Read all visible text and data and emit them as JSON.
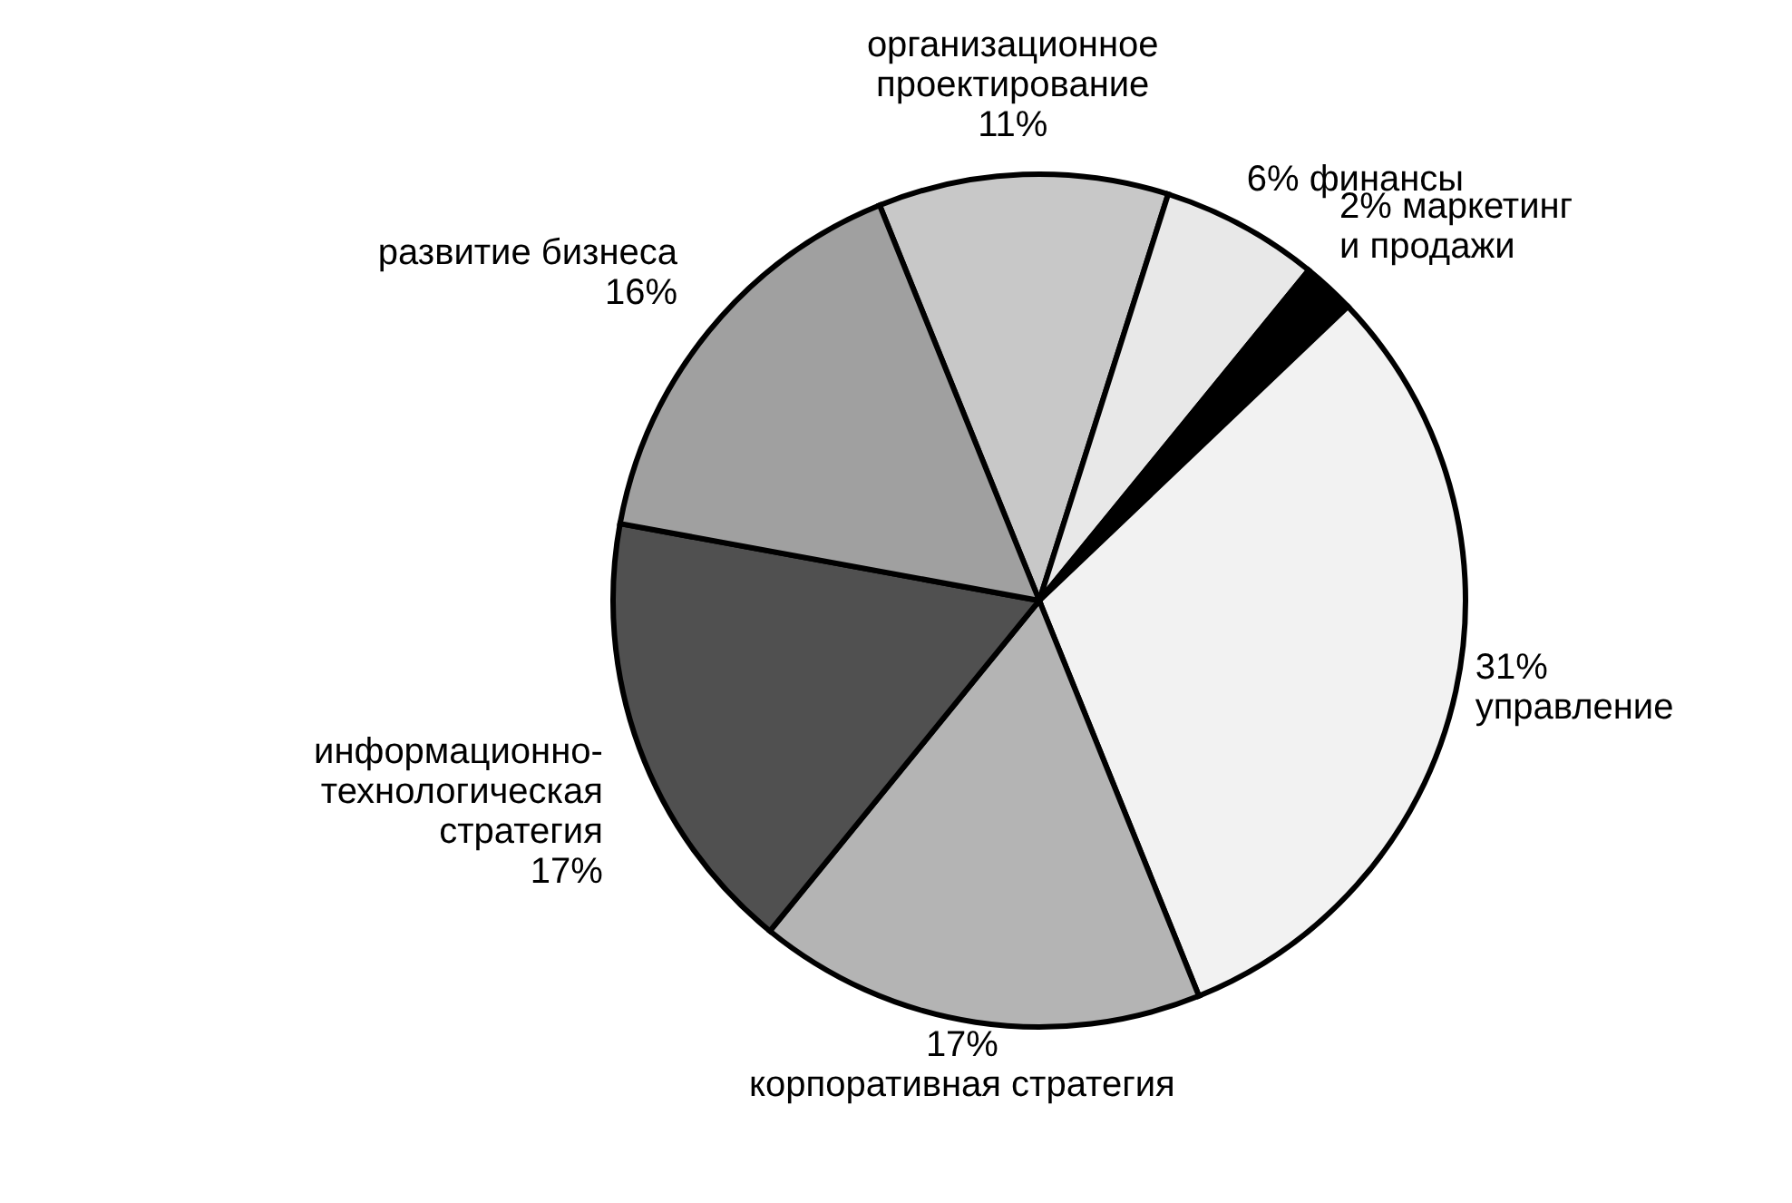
{
  "chart_data": {
    "type": "pie",
    "categories": [
      "организационное проектирование",
      "финансы",
      "маркетинг и продажи",
      "управление",
      "корпоративная стратегия",
      "информационно-технологическая стратегия",
      "развитие бизнеса"
    ],
    "values": [
      11,
      6,
      2,
      31,
      17,
      17,
      16
    ],
    "value_labels": [
      "11%",
      "6%",
      "2%",
      "31%",
      "17%",
      "17%",
      "16%"
    ],
    "colors": [
      "#c8c8c8",
      "#e8e8e8",
      "#000000",
      "#f2f2f2",
      "#b4b4b4",
      "#505050",
      "#a0a0a0"
    ]
  }
}
